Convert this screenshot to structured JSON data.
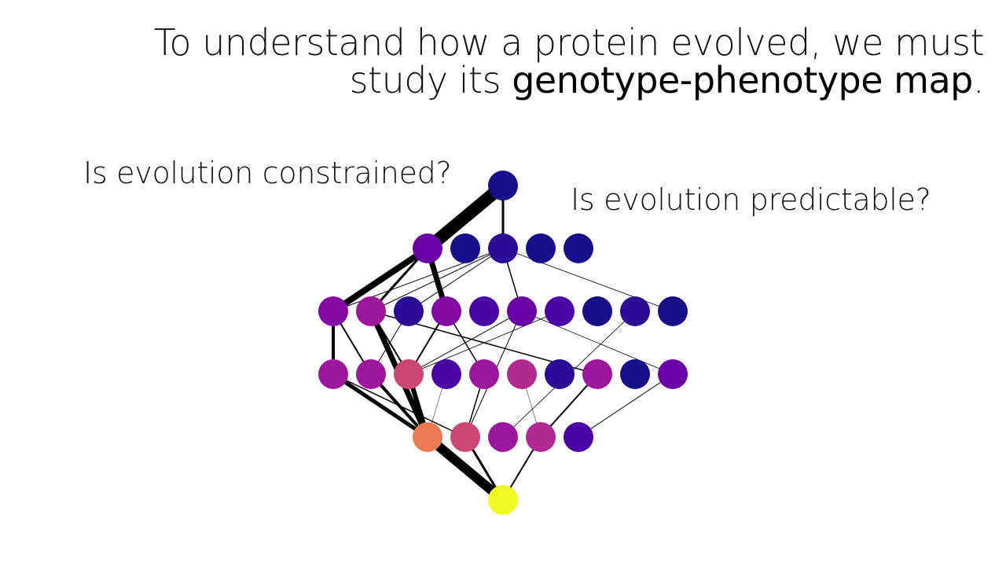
{
  "slide": {
    "title_line1": "To understand how a protein evolved, we must",
    "title_line2_prefix": "study its ",
    "title_line2_bold": "genotype-phenotype map",
    "title_line2_suffix": ".",
    "question_left": "Is evolution constrained?",
    "question_right": "Is evolution predictable?"
  },
  "network": {
    "colors": {
      "deep_blue": "#160d8b",
      "indigo": "#2b0a98",
      "blue_violet": "#4a03a4",
      "violet": "#6a00a8",
      "purple": "#8408a4",
      "magenta": "#9c179e",
      "pink_magenta": "#b02a8f",
      "rose": "#cc4778",
      "coral": "#ed7953",
      "yellow": "#f0f921"
    },
    "edge_color": "#000000"
  }
}
